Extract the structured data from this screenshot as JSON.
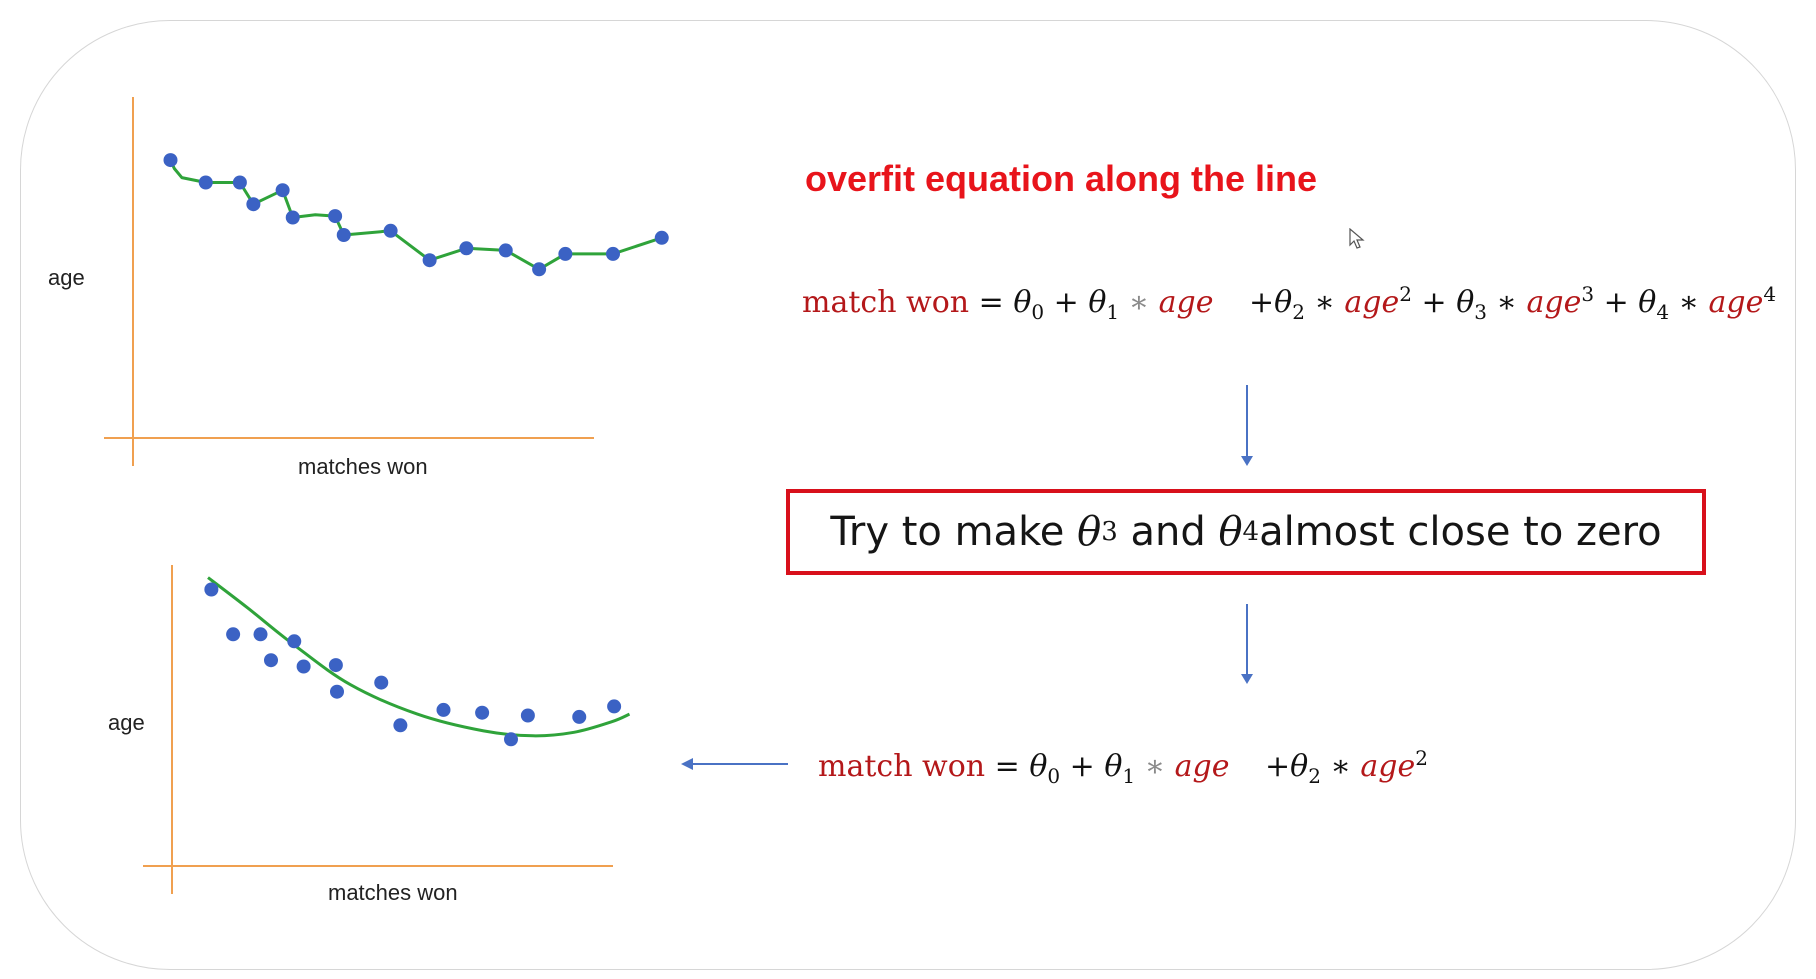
{
  "title": "overfit equation along the line",
  "equations": {
    "overfit": {
      "lhs": "match won",
      "theta": "θ",
      "age": "age",
      "sub0": "0",
      "sub1": "1",
      "sub2": "2",
      "sub3": "3",
      "sub4": "4",
      "pow2": "2",
      "pow3": "3",
      "pow4": "4"
    },
    "regularized": {
      "lhs": "match won",
      "theta": "θ",
      "age": "age",
      "sub0": "0",
      "sub1": "1",
      "sub2": "2",
      "pow2": "2"
    }
  },
  "callout": {
    "before": "Try to make ",
    "theta": "θ",
    "sub3": "3",
    "middle": " and ",
    "sub4": "4",
    "after": "almost close to zero"
  },
  "chart_data": [
    {
      "type": "scatter",
      "fit": "overfit polyline through points",
      "xlabel": "matches won",
      "ylabel": "age",
      "points": [
        [
          1,
          3.97
        ],
        [
          1.94,
          3.65
        ],
        [
          2.85,
          3.65
        ],
        [
          3.21,
          3.34
        ],
        [
          3.99,
          3.54
        ],
        [
          4.26,
          3.15
        ],
        [
          5.39,
          3.17
        ],
        [
          5.62,
          2.9
        ],
        [
          6.87,
          2.96
        ],
        [
          7.91,
          2.54
        ],
        [
          8.89,
          2.71
        ],
        [
          9.94,
          2.68
        ],
        [
          10.83,
          2.41
        ],
        [
          11.53,
          2.63
        ],
        [
          12.8,
          2.63
        ],
        [
          14.1,
          2.86
        ]
      ],
      "fit_line": [
        [
          1,
          3.97
        ],
        [
          1.1,
          3.85
        ],
        [
          1.3,
          3.72
        ],
        [
          1.94,
          3.65
        ],
        [
          2.85,
          3.65
        ],
        [
          3.21,
          3.34
        ],
        [
          3.99,
          3.54
        ],
        [
          4.26,
          3.15
        ],
        [
          4.86,
          3.19
        ],
        [
          5.39,
          3.17
        ],
        [
          5.62,
          2.9
        ],
        [
          6.87,
          2.96
        ],
        [
          7.91,
          2.54
        ],
        [
          8.89,
          2.71
        ],
        [
          9.94,
          2.68
        ],
        [
          10.83,
          2.41
        ],
        [
          11.53,
          2.63
        ],
        [
          12.8,
          2.63
        ],
        [
          14.1,
          2.86
        ]
      ],
      "axis_color": "#f0a050",
      "point_color": "#3b62c4",
      "line_color": "#2fa33a"
    },
    {
      "type": "scatter",
      "fit": "quadratic curve",
      "xlabel": "matches won",
      "ylabel": "age",
      "points": [
        [
          1.05,
          3.95
        ],
        [
          1.63,
          3.31
        ],
        [
          2.36,
          3.31
        ],
        [
          2.64,
          2.94
        ],
        [
          3.26,
          3.21
        ],
        [
          3.51,
          2.85
        ],
        [
          4.37,
          2.87
        ],
        [
          4.4,
          2.49
        ],
        [
          5.58,
          2.62
        ],
        [
          6.09,
          2.01
        ],
        [
          7.24,
          2.23
        ],
        [
          8.27,
          2.19
        ],
        [
          9.04,
          1.81
        ],
        [
          9.49,
          2.15
        ],
        [
          10.86,
          2.13
        ],
        [
          11.79,
          2.28
        ]
      ],
      "fit_line": [
        [
          0.96,
          4.12
        ],
        [
          2.01,
          3.69
        ],
        [
          3.25,
          3.16
        ],
        [
          4.76,
          2.59
        ],
        [
          6.54,
          2.17
        ],
        [
          8.31,
          1.93
        ],
        [
          9.63,
          1.86
        ],
        [
          10.72,
          1.91
        ],
        [
          11.72,
          2.06
        ],
        [
          12.2,
          2.17
        ]
      ],
      "axis_color": "#f0a050",
      "point_color": "#3b62c4",
      "line_color": "#2fa33a"
    }
  ],
  "colors": {
    "title_red": "#e8141b",
    "box_border": "#d8101b",
    "variable_red": "#b4181a",
    "arrow_blue": "#4a72c4"
  }
}
